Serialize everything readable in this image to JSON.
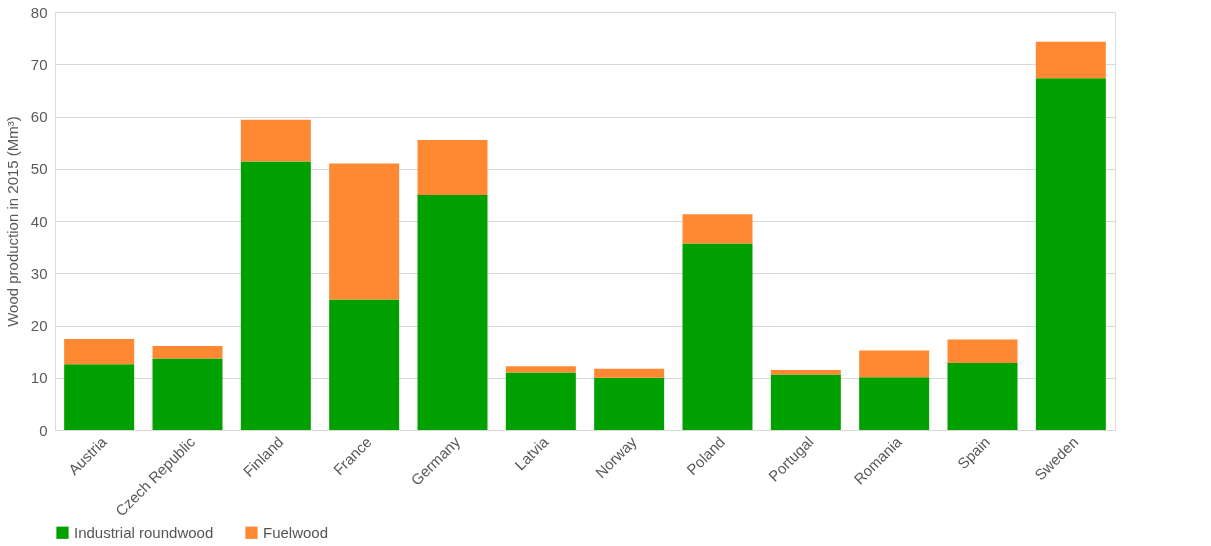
{
  "chart_data": {
    "type": "bar",
    "stacked": true,
    "ylabel": "Wood production in 2015 (Mm³)",
    "categories": [
      "Austria",
      "Czech Republic",
      "Finland",
      "France",
      "Germany",
      "Latvia",
      "Norway",
      "Poland",
      "Portugal",
      "Romania",
      "Spain",
      "Sweden"
    ],
    "series": [
      {
        "name": "Industrial roundwood",
        "color": "#00a000",
        "values": [
          12.6,
          13.7,
          51.4,
          25.0,
          45.0,
          11.0,
          10.0,
          35.7,
          10.6,
          10.1,
          12.8,
          67.3
        ]
      },
      {
        "name": "Fuelwood",
        "color": "#ff8833",
        "values": [
          4.8,
          2.4,
          8.0,
          26.0,
          10.5,
          1.2,
          1.7,
          5.6,
          0.9,
          5.1,
          4.5,
          7.0
        ]
      }
    ],
    "ylim": [
      0,
      80
    ],
    "yticks": [
      0,
      10,
      20,
      30,
      40,
      50,
      60,
      70,
      80
    ],
    "grid": "y",
    "legend": "bottom"
  }
}
